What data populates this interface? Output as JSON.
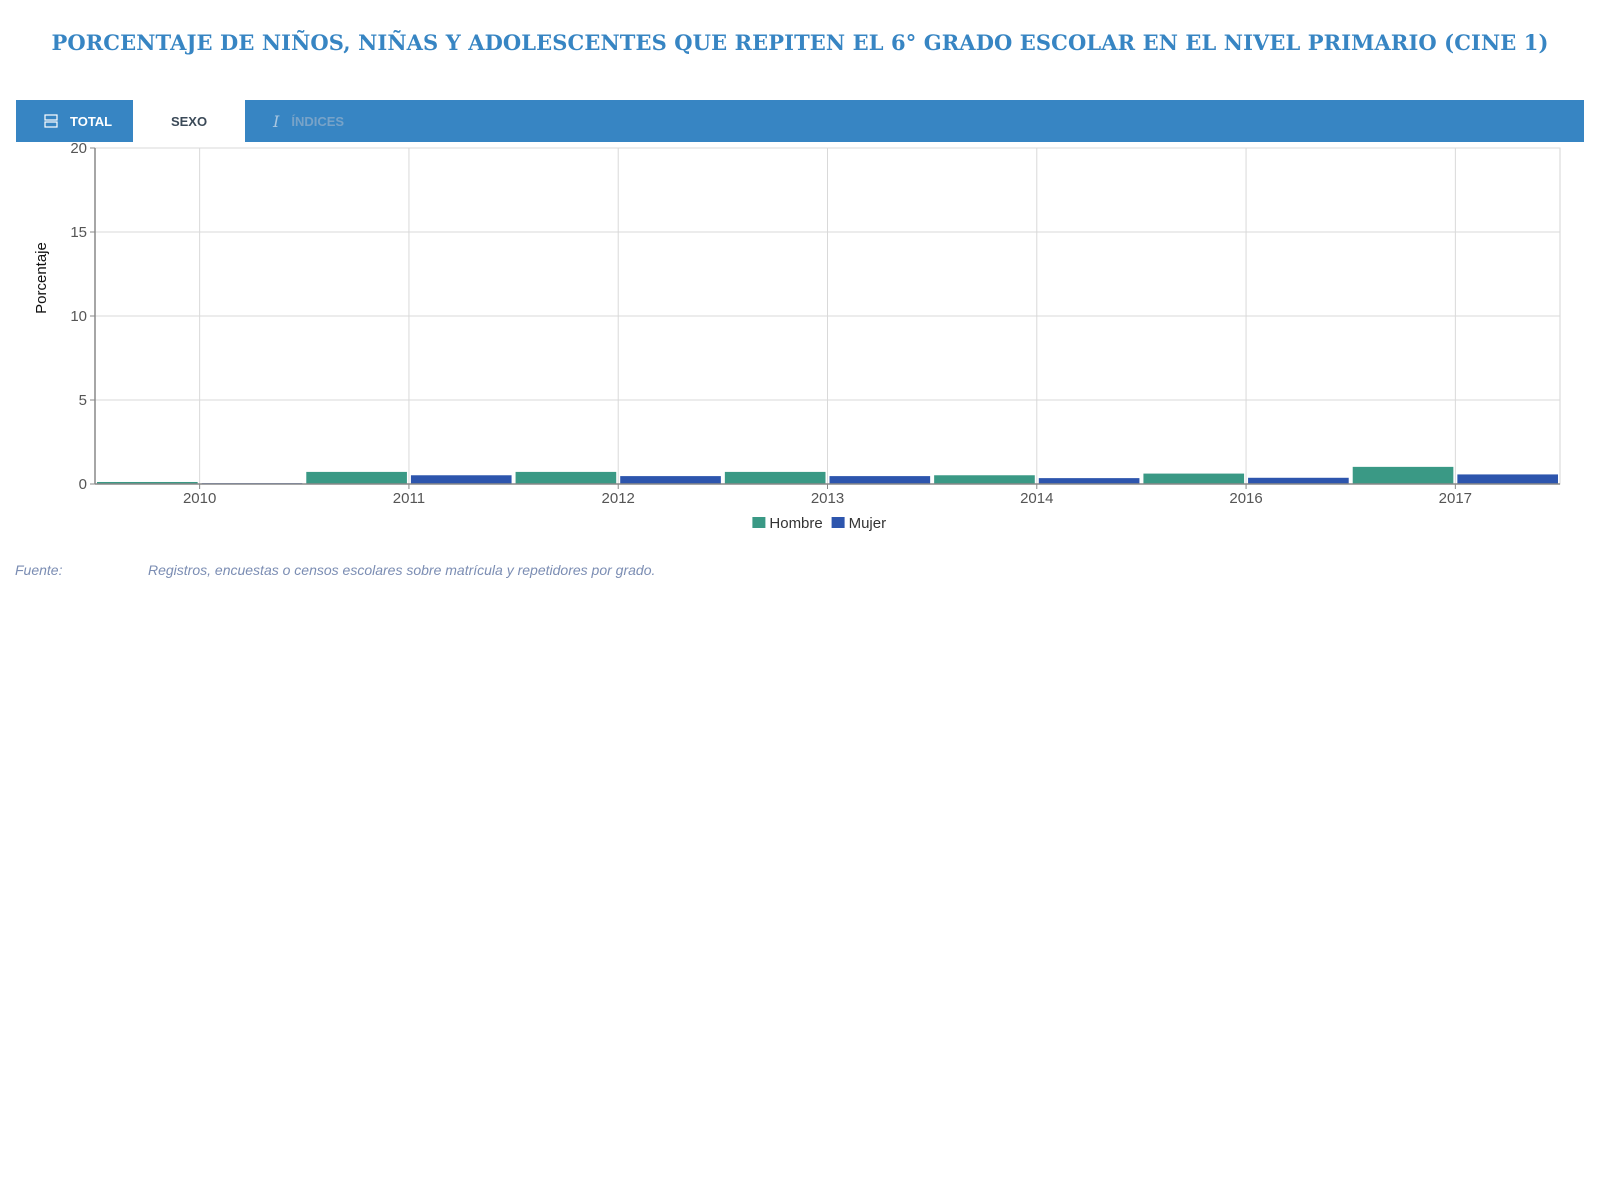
{
  "title": "PORCENTAJE DE NIÑOS, NIÑAS Y ADOLESCENTES QUE REPITEN EL 6° GRADO ESCOLAR EN EL NIVEL PRIMARIO (CINE 1)",
  "tabs": {
    "total": {
      "label": "TOTAL",
      "icon": "list-icon"
    },
    "sexo": {
      "label": "SEXO"
    },
    "indices": {
      "label": "ÍNDICES",
      "icon": "italic-i-icon"
    }
  },
  "colors": {
    "accent": "#3785c3",
    "hombre": "#3a9985",
    "mujer": "#2d55ad"
  },
  "chart_data": {
    "type": "bar",
    "categories": [
      "2010",
      "2011",
      "2012",
      "2013",
      "2014",
      "2016",
      "2017"
    ],
    "series": [
      {
        "name": "Hombre",
        "values": [
          0.12,
          0.72,
          0.72,
          0.72,
          0.52,
          0.62,
          1.02
        ]
      },
      {
        "name": "Mujer",
        "values": [
          0.05,
          0.52,
          0.47,
          0.47,
          0.35,
          0.37,
          0.57
        ]
      }
    ],
    "ylabel": "Porcentaje",
    "xlabel": "",
    "ylim": [
      0,
      20
    ],
    "yticks": [
      0,
      5,
      10,
      15,
      20
    ],
    "grid": true,
    "legend": "bottom-center"
  },
  "source": {
    "label": "Fuente:",
    "text": "Registros, encuestas o censos escolares sobre matrícula y repetidores por grado."
  }
}
